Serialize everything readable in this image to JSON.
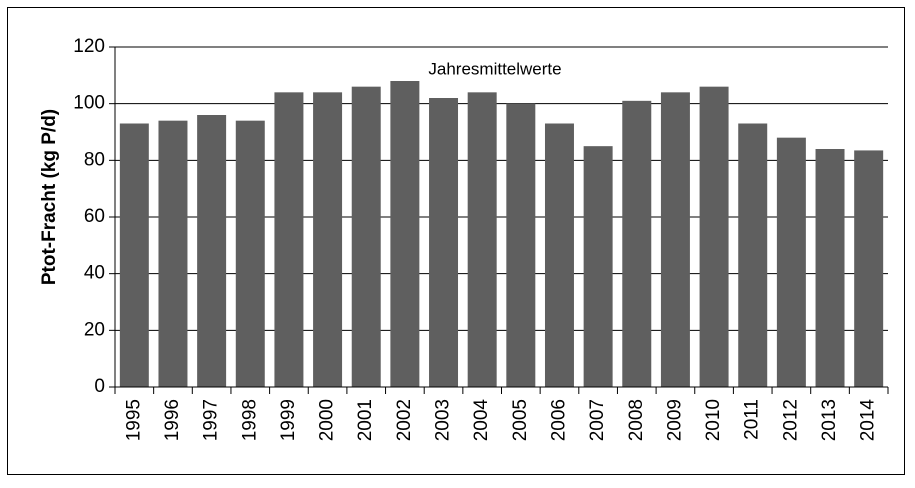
{
  "chart_data": {
    "type": "bar",
    "annotation": "Jahresmittelwerte",
    "y_label": "Ptot-Fracht (kg P/d)",
    "categories": [
      "1995",
      "1996",
      "1997",
      "1998",
      "1999",
      "2000",
      "2001",
      "2002",
      "2003",
      "2004",
      "2005",
      "2006",
      "2007",
      "2008",
      "2009",
      "2010",
      "2011",
      "2012",
      "2013",
      "2014"
    ],
    "values": [
      93,
      94,
      96,
      94,
      104,
      104,
      106,
      108,
      102,
      104,
      100,
      93,
      85,
      101,
      104,
      106,
      93,
      88,
      84,
      83.5
    ],
    "color": "#5f5f5f",
    "ylim": [
      0,
      120
    ],
    "yticks": [
      0,
      20,
      40,
      60,
      80,
      100,
      120
    ],
    "grid": true
  }
}
